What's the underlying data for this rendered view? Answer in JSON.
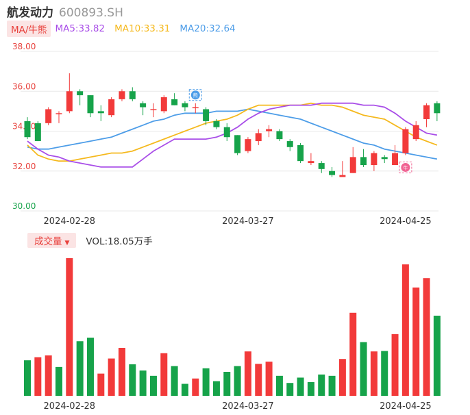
{
  "header": {
    "name": "航发动力",
    "code": "600893.SH"
  },
  "ma": {
    "tag": "MA/牛熊",
    "items": [
      {
        "label": "MA5:33.82",
        "color": "#a94ee8"
      },
      {
        "label": "MA10:33.31",
        "color": "#f5b91e"
      },
      {
        "label": "MA20:32.64",
        "color": "#4d9de8"
      }
    ]
  },
  "volume_header": {
    "tag": "成交量",
    "caret": "▼",
    "text": "VOL:18.05万手"
  },
  "colors": {
    "up": "#f23a3a",
    "down": "#16a34a",
    "grid": "#e8e8e8",
    "axis_red": "#e8413c",
    "axis_green": "#16a34a"
  },
  "badges": {
    "bear": "熊",
    "bull": "牛"
  },
  "chart_data": [
    {
      "type": "candlestick",
      "y_ticks": [
        "38.00",
        "36.00",
        "34.00",
        "32.00",
        "30.00"
      ],
      "ylim": [
        30,
        38
      ],
      "x_ticks": [
        {
          "index": 4,
          "label": "2024-02-28"
        },
        {
          "index": 21,
          "label": "2024-03-27"
        },
        {
          "index": 36,
          "label": "2024-04-25"
        }
      ],
      "bear_signal_index": 16,
      "bull_signal_index": 36,
      "candles": [
        {
          "o": 34.5,
          "c": 33.7,
          "h": 34.7,
          "l": 33.6
        },
        {
          "o": 34.4,
          "c": 33.5,
          "h": 34.5,
          "l": 33.5
        },
        {
          "o": 34.4,
          "c": 35.1,
          "h": 35.2,
          "l": 34.3
        },
        {
          "o": 34.9,
          "c": 34.9,
          "h": 35.0,
          "l": 34.4
        },
        {
          "o": 35.0,
          "c": 36.0,
          "h": 36.9,
          "l": 34.9
        },
        {
          "o": 36.0,
          "c": 35.8,
          "h": 36.1,
          "l": 35.3
        },
        {
          "o": 35.8,
          "c": 34.9,
          "h": 35.8,
          "l": 34.7
        },
        {
          "o": 35.0,
          "c": 34.9,
          "h": 35.3,
          "l": 34.5
        },
        {
          "o": 34.8,
          "c": 35.6,
          "h": 35.7,
          "l": 34.7
        },
        {
          "o": 35.6,
          "c": 36.0,
          "h": 36.1,
          "l": 35.5
        },
        {
          "o": 36.0,
          "c": 35.6,
          "h": 36.2,
          "l": 35.5
        },
        {
          "o": 35.4,
          "c": 35.2,
          "h": 35.5,
          "l": 34.8
        },
        {
          "o": 35.1,
          "c": 35.1,
          "h": 35.4,
          "l": 34.7
        },
        {
          "o": 35.0,
          "c": 35.7,
          "h": 35.8,
          "l": 34.9
        },
        {
          "o": 35.6,
          "c": 35.3,
          "h": 35.9,
          "l": 35.3
        },
        {
          "o": 35.4,
          "c": 35.2,
          "h": 35.5,
          "l": 35.0
        },
        {
          "o": 35.2,
          "c": 35.2,
          "h": 35.4,
          "l": 34.9
        },
        {
          "o": 35.1,
          "c": 34.5,
          "h": 35.2,
          "l": 34.3
        },
        {
          "o": 34.5,
          "c": 34.2,
          "h": 34.6,
          "l": 34.1
        },
        {
          "o": 34.2,
          "c": 33.7,
          "h": 34.4,
          "l": 33.5
        },
        {
          "o": 33.8,
          "c": 32.9,
          "h": 33.8,
          "l": 32.8
        },
        {
          "o": 33.0,
          "c": 33.6,
          "h": 33.7,
          "l": 32.9
        },
        {
          "o": 33.5,
          "c": 33.9,
          "h": 34.1,
          "l": 33.3
        },
        {
          "o": 34.0,
          "c": 34.1,
          "h": 34.3,
          "l": 33.7
        },
        {
          "o": 34.0,
          "c": 33.6,
          "h": 34.1,
          "l": 33.5
        },
        {
          "o": 33.5,
          "c": 33.2,
          "h": 33.6,
          "l": 33.0
        },
        {
          "o": 33.3,
          "c": 32.5,
          "h": 33.4,
          "l": 32.4
        },
        {
          "o": 32.4,
          "c": 32.5,
          "h": 32.9,
          "l": 32.3
        },
        {
          "o": 32.4,
          "c": 32.1,
          "h": 32.5,
          "l": 31.9
        },
        {
          "o": 32.0,
          "c": 31.8,
          "h": 32.2,
          "l": 31.7
        },
        {
          "o": 31.7,
          "c": 31.8,
          "h": 32.5,
          "l": 31.7
        },
        {
          "o": 31.9,
          "c": 32.7,
          "h": 33.2,
          "l": 31.9
        },
        {
          "o": 32.7,
          "c": 32.3,
          "h": 33.1,
          "l": 32.2
        },
        {
          "o": 32.3,
          "c": 32.9,
          "h": 33.0,
          "l": 32.0
        },
        {
          "o": 32.7,
          "c": 32.6,
          "h": 32.8,
          "l": 32.4
        },
        {
          "o": 32.3,
          "c": 32.9,
          "h": 33.3,
          "l": 32.3
        },
        {
          "o": 32.9,
          "c": 34.1,
          "h": 34.2,
          "l": 32.8
        },
        {
          "o": 33.6,
          "c": 34.3,
          "h": 34.5,
          "l": 33.5
        },
        {
          "o": 34.6,
          "c": 35.3,
          "h": 35.4,
          "l": 34.2
        },
        {
          "o": 35.4,
          "c": 34.9,
          "h": 35.5,
          "l": 34.5
        }
      ],
      "ma5": [
        33.5,
        33.1,
        32.8,
        32.7,
        32.5,
        32.4,
        32.3,
        32.2,
        32.2,
        32.2,
        32.2,
        32.6,
        33.0,
        33.3,
        33.6,
        33.6,
        33.6,
        33.6,
        33.7,
        33.9,
        34.2,
        34.6,
        34.9,
        35.1,
        35.2,
        35.3,
        35.3,
        35.3,
        35.4,
        35.4,
        35.4,
        35.4,
        35.3,
        35.3,
        35.2,
        34.9,
        34.5,
        34.2,
        33.9,
        33.8
      ],
      "ma10": [
        33.3,
        32.8,
        32.6,
        32.5,
        32.5,
        32.6,
        32.7,
        32.8,
        32.9,
        32.9,
        33.0,
        33.2,
        33.4,
        33.6,
        33.8,
        34.0,
        34.2,
        34.4,
        34.5,
        34.6,
        34.8,
        35.1,
        35.3,
        35.3,
        35.3,
        35.3,
        35.3,
        35.4,
        35.3,
        35.3,
        35.2,
        35.0,
        34.8,
        34.7,
        34.6,
        34.3,
        34.0,
        33.7,
        33.5,
        33.3
      ],
      "ma20": [
        33.2,
        33.1,
        33.1,
        33.2,
        33.3,
        33.4,
        33.5,
        33.6,
        33.7,
        33.9,
        34.1,
        34.3,
        34.5,
        34.6,
        34.8,
        34.9,
        34.9,
        34.9,
        35.0,
        35.0,
        35.0,
        35.1,
        35.0,
        34.9,
        34.8,
        34.7,
        34.6,
        34.4,
        34.2,
        34.0,
        33.8,
        33.6,
        33.4,
        33.3,
        33.1,
        33.0,
        32.9,
        32.8,
        32.7,
        32.6
      ]
    },
    {
      "type": "bar",
      "title": "VOL:18.05万手",
      "unit": "万手",
      "x_ticks": [
        {
          "index": 4,
          "label": "2024-02-28"
        },
        {
          "index": 21,
          "label": "2024-03-27"
        },
        {
          "index": 36,
          "label": "2024-04-25"
        }
      ],
      "values": [
        8.0,
        8.7,
        9.1,
        6.5,
        31.0,
        12.3,
        13.1,
        5.0,
        8.4,
        10.8,
        7.1,
        5.7,
        4.5,
        9.6,
        6.7,
        2.7,
        3.9,
        6.2,
        3.3,
        5.4,
        6.7,
        10.0,
        7.2,
        7.7,
        4.5,
        2.9,
        4.1,
        3.1,
        4.8,
        4.5,
        8.3,
        18.7,
        12.1,
        10.0,
        10.1,
        13.9,
        29.6,
        24.4,
        26.5,
        18.05
      ],
      "directions": [
        "down",
        "up",
        "up",
        "down",
        "up",
        "down",
        "down",
        "up",
        "up",
        "up",
        "down",
        "down",
        "down",
        "up",
        "down",
        "down",
        "up",
        "down",
        "down",
        "down",
        "down",
        "up",
        "up",
        "up",
        "down",
        "down",
        "down",
        "down",
        "down",
        "down",
        "up",
        "up",
        "down",
        "up",
        "down",
        "up",
        "up",
        "up",
        "up",
        "down"
      ]
    }
  ]
}
